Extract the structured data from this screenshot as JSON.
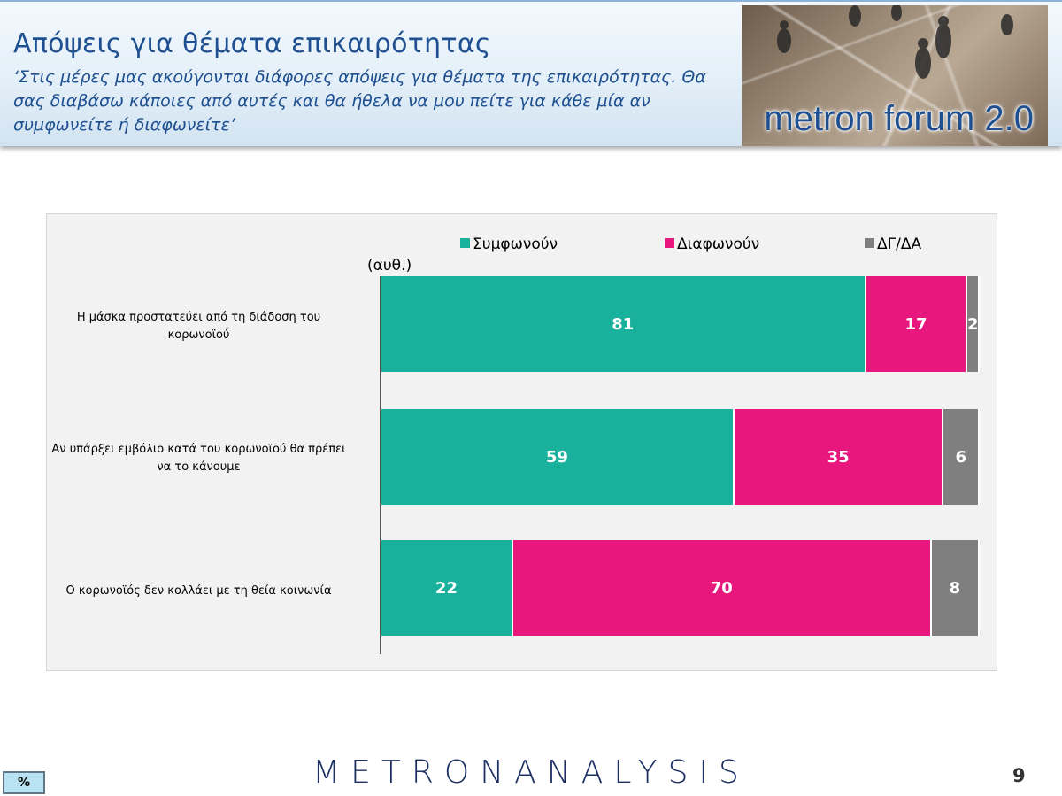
{
  "header": {
    "title": "Απόψεις για θέματα επικαιρότητας",
    "subtitle": "‘Στις μέρες μας ακούγονται διάφορες απόψεις για θέματα της επικαιρότητας. Θα σας διαβάσω κάποιες από αυτές και θα ήθελα να μου πείτε για κάθε μία αν συμφωνείτε ή διαφωνείτε’",
    "brand": "metron forum 2.0"
  },
  "chart_data": {
    "type": "bar",
    "orientation": "horizontal",
    "stacked": true,
    "unit_label": "(αυθ.)",
    "categories": [
      "Η μάσκα προστατεύει από τη διάδοση του κορωνοϊού",
      "Αν υπάρξει εμβόλιο κατά του κορωνοϊού θα πρέπει να το κάνουμε",
      "Ο κορωνοϊός δεν κολλάει με τη θεία κοινωνία"
    ],
    "series": [
      {
        "name": "Συμφωνούν",
        "color": "#1ab19c",
        "values": [
          81,
          59,
          22
        ]
      },
      {
        "name": "Διαφωνούν",
        "color": "#e8177d",
        "values": [
          17,
          35,
          70
        ]
      },
      {
        "name": "ΔΓ/ΔΑ",
        "color": "#7f7f7f",
        "values": [
          2,
          6,
          8
        ]
      }
    ],
    "xlim": [
      0,
      100
    ],
    "legend_position": "top",
    "grid": false
  },
  "footer": {
    "logo": "METRONANALYSIS",
    "page_number": "9",
    "percent_button": "%"
  }
}
